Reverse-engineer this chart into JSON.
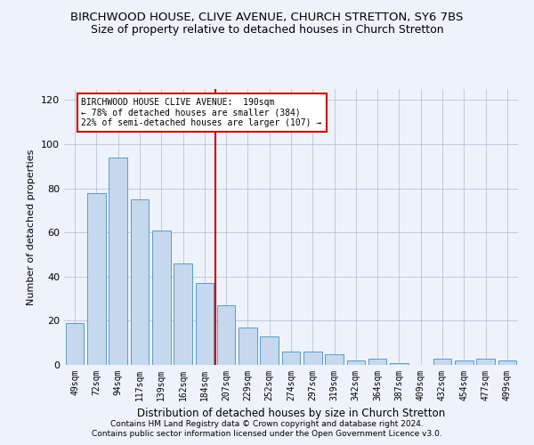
{
  "title": "BIRCHWOOD HOUSE, CLIVE AVENUE, CHURCH STRETTON, SY6 7BS",
  "subtitle": "Size of property relative to detached houses in Church Stretton",
  "xlabel": "Distribution of detached houses by size in Church Stretton",
  "ylabel": "Number of detached properties",
  "cats": [
    "49sqm",
    "72sqm",
    "94sqm",
    "117sqm",
    "139sqm",
    "162sqm",
    "184sqm",
    "207sqm",
    "229sqm",
    "252sqm",
    "274sqm",
    "297sqm",
    "319sqm",
    "342sqm",
    "364sqm",
    "387sqm",
    "409sqm",
    "432sqm",
    "454sqm",
    "477sqm",
    "499sqm"
  ],
  "heights": [
    19,
    78,
    94,
    75,
    61,
    46,
    37,
    27,
    17,
    13,
    6,
    6,
    5,
    2,
    3,
    1,
    0,
    3,
    2,
    3,
    2
  ],
  "ylim": [
    0,
    125
  ],
  "yticks": [
    0,
    20,
    40,
    60,
    80,
    100,
    120
  ],
  "bar_color": "#c5d8ed",
  "bar_edge_color": "#5a9bc9",
  "annotation_line1": "BIRCHWOOD HOUSE CLIVE AVENUE:  190sqm",
  "annotation_line2": "← 78% of detached houses are smaller (384)",
  "annotation_line3": "22% of semi-detached houses are larger (107) →",
  "vline_color": "#cc0000",
  "annotation_box_color": "#cc0000",
  "footer_line1": "Contains HM Land Registry data © Crown copyright and database right 2024.",
  "footer_line2": "Contains public sector information licensed under the Open Government Licence v3.0.",
  "bg_color": "#eef2fb"
}
